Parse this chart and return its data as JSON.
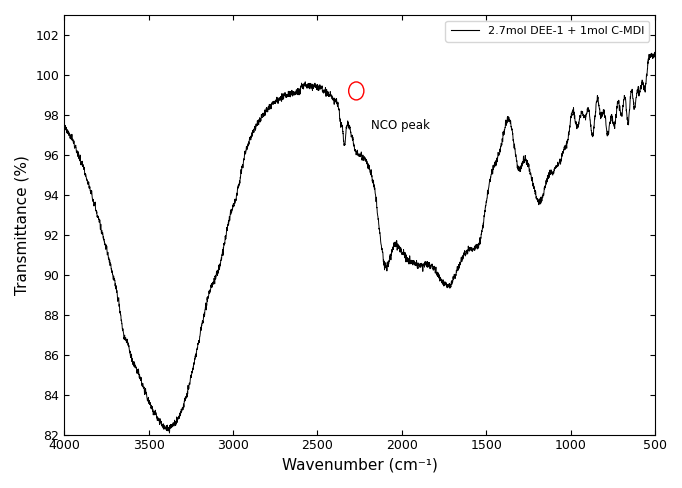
{
  "xlabel": "Wavenumber (cm⁻¹)",
  "ylabel": "Transmittance (%)",
  "xlim": [
    4000,
    500
  ],
  "ylim": [
    82,
    103
  ],
  "yticks": [
    82,
    84,
    86,
    88,
    90,
    92,
    94,
    96,
    98,
    100,
    102
  ],
  "xticks": [
    4000,
    3500,
    3000,
    2500,
    2000,
    1500,
    1000,
    500
  ],
  "legend_label": "2.7mol DEE-1 + 1mol C-MDI",
  "nco_annotation": "NCO peak",
  "line_color": "black",
  "background_color": "white",
  "circle_color": "red",
  "nco_circle_wn": 2270,
  "nco_circle_T": 99.2,
  "nco_text_wn": 2180,
  "nco_text_T": 97.8
}
